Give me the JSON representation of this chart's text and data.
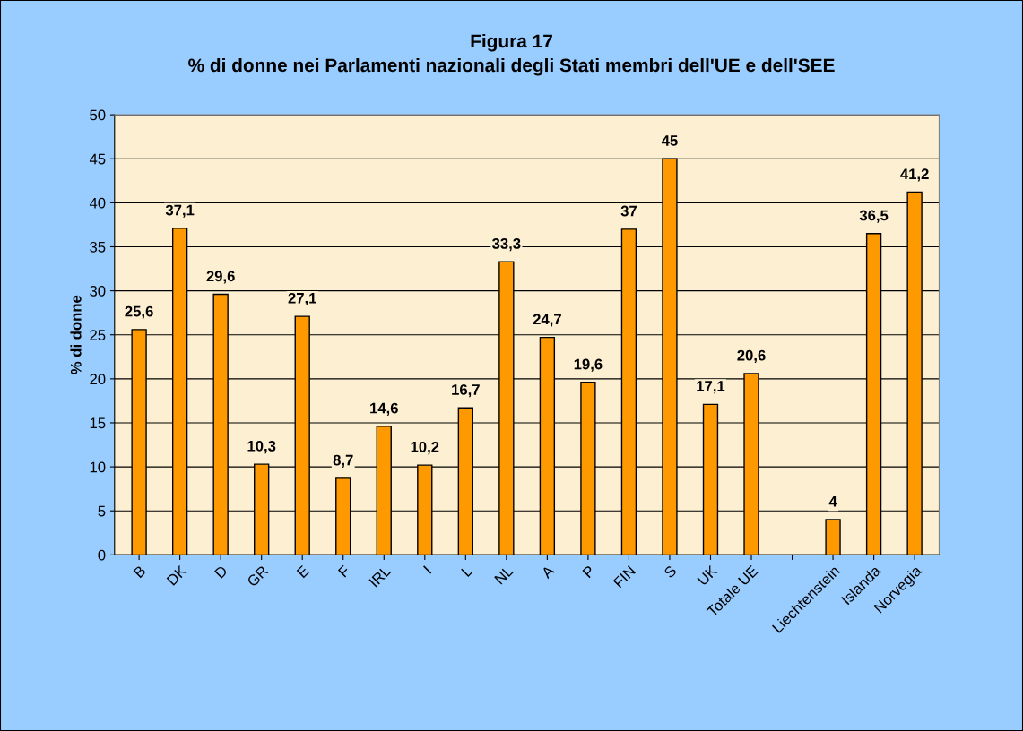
{
  "chart_data": {
    "type": "bar",
    "title": "Figura 17\n% di donne nei Parlamenti nazionali degli Stati membri dell'UE e dell'SEE",
    "ylabel": "% di donne",
    "categories": [
      "B",
      "DK",
      "D",
      "GR",
      "E",
      "F",
      "IRL",
      "I",
      "L",
      "NL",
      "A",
      "P",
      "FIN",
      "S",
      "UK",
      "Totale UE",
      null,
      "Liechtenstein",
      "Islanda",
      "Norvegia"
    ],
    "values": [
      25.6,
      37.1,
      29.6,
      10.3,
      27.1,
      8.7,
      14.6,
      10.2,
      16.7,
      33.3,
      24.7,
      19.6,
      37,
      45,
      17.1,
      20.6,
      null,
      4,
      36.5,
      41.2
    ],
    "value_labels": [
      "25,6",
      "37,1",
      "29,6",
      "10,3",
      "27,1",
      "8,7",
      "14,6",
      "10,2",
      "16,7",
      "33,3",
      "24,7",
      "19,6",
      "37",
      "45",
      "17,1",
      "20,6",
      null,
      "4",
      "36,5",
      "41,2"
    ],
    "color": "#ff9900",
    "ylim": [
      0,
      50
    ],
    "yticks": [
      0,
      5,
      10,
      15,
      20,
      25,
      30,
      35,
      40,
      45,
      50
    ],
    "grid": "y",
    "legend": false
  }
}
